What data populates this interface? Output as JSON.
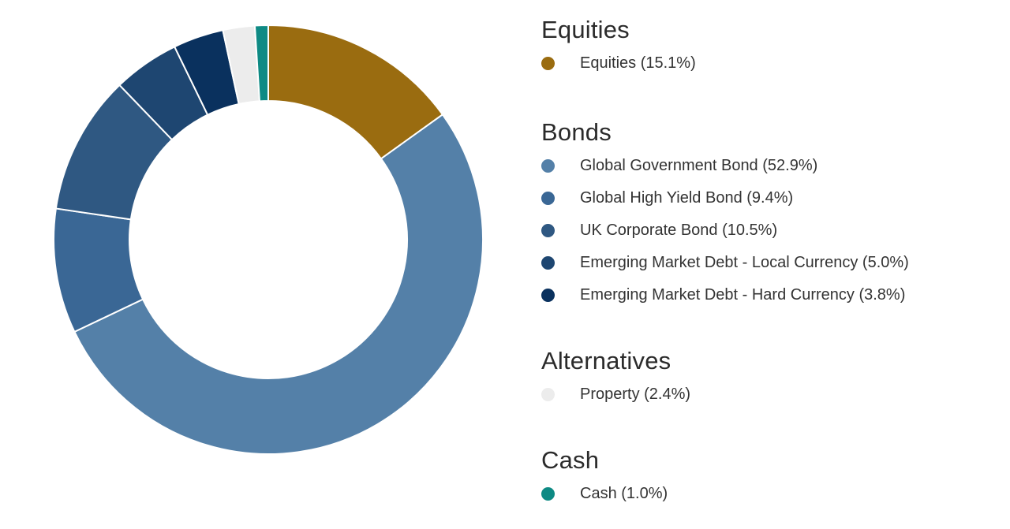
{
  "chart_data": {
    "type": "pie",
    "variant": "donut",
    "slices": [
      {
        "label": "Equities (15.1%)",
        "group": "Equities",
        "value": 15.1,
        "color": "#9a6c10"
      },
      {
        "label": "Global Government Bond (52.9%)",
        "group": "Bonds",
        "value": 52.9,
        "color": "#5480a8"
      },
      {
        "label": "Global High Yield Bond (9.4%)",
        "group": "Bonds",
        "value": 9.4,
        "color": "#3a6795"
      },
      {
        "label": "UK Corporate Bond (10.5%)",
        "group": "Bonds",
        "value": 10.5,
        "color": "#2f5882"
      },
      {
        "label": "Emerging Market Debt - Local Currency (5.0%)",
        "group": "Bonds",
        "value": 5.0,
        "color": "#1e4671"
      },
      {
        "label": "Emerging Market Debt - Hard Currency (3.8%)",
        "group": "Bonds",
        "value": 3.8,
        "color": "#0a315e"
      },
      {
        "label": "Property (2.4%)",
        "group": "Alternatives",
        "value": 2.4,
        "color": "#ececec"
      },
      {
        "label": "Cash (1.0%)",
        "group": "Cash",
        "value": 1.0,
        "color": "#0e8a84"
      }
    ],
    "legend_placement": "right",
    "slice_border_color": "#ffffff"
  },
  "legend": {
    "groups": [
      {
        "title": "Equities",
        "items": [
          {
            "label": "Equities (15.1%)",
            "color": "#9a6c10"
          }
        ]
      },
      {
        "title": "Bonds",
        "items": [
          {
            "label": "Global Government Bond (52.9%)",
            "color": "#5480a8"
          },
          {
            "label": "Global High Yield Bond (9.4%)",
            "color": "#3a6795"
          },
          {
            "label": "UK Corporate Bond (10.5%)",
            "color": "#2f5882"
          },
          {
            "label": "Emerging Market Debt - Local Currency (5.0%)",
            "color": "#1e4671"
          },
          {
            "label": "Emerging Market Debt - Hard Currency (3.8%)",
            "color": "#0a315e"
          }
        ]
      },
      {
        "title": "Alternatives",
        "items": [
          {
            "label": "Property (2.4%)",
            "color": "#ececec"
          }
        ]
      },
      {
        "title": "Cash",
        "items": [
          {
            "label": "Cash (1.0%)",
            "color": "#0e8a84"
          }
        ]
      }
    ]
  }
}
